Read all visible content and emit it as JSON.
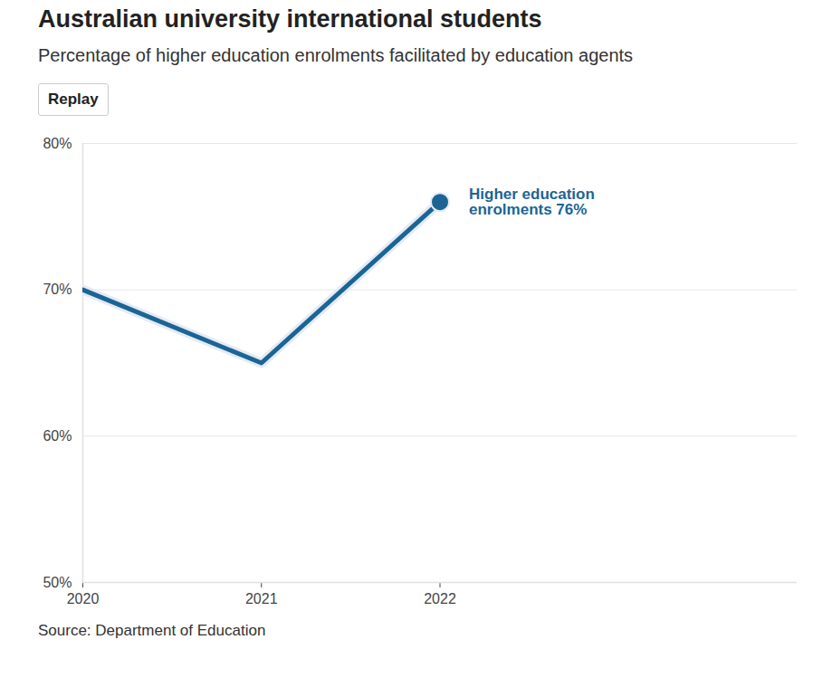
{
  "chart_data": {
    "type": "line",
    "title": "Australian university international students",
    "subtitle": "Percentage of higher education enrolments facilitated by education agents",
    "button": "Replay",
    "source": "Source: Department of Education",
    "x": [
      2020,
      2021,
      2022
    ],
    "series": [
      {
        "label": "Higher education enrolments 76%",
        "color": "#1b6595",
        "values": [
          70,
          65,
          76
        ]
      }
    ],
    "xlim": [
      2020,
      2024
    ],
    "xticks": [
      2020,
      2021,
      2022
    ],
    "ylim": [
      50,
      80
    ],
    "yticks": [
      {
        "value": 50,
        "label": "50%"
      },
      {
        "value": 60,
        "label": "60%"
      },
      {
        "value": 70,
        "label": "70%"
      },
      {
        "value": 80,
        "label": "80%"
      }
    ],
    "grid": true
  }
}
